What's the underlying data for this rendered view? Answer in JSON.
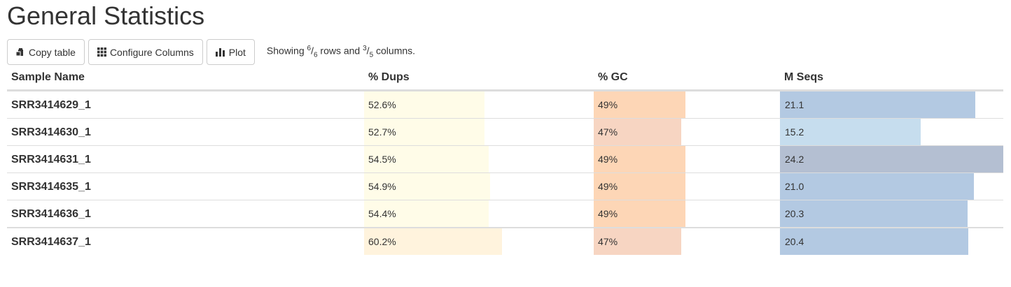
{
  "title": "General Statistics",
  "toolbar": {
    "copy_label": "Copy table",
    "configure_label": "Configure Columns",
    "plot_label": "Plot",
    "showing_prefix": "Showing ",
    "rows_shown": "6",
    "rows_total": "6",
    "rows_word": " rows and ",
    "cols_shown": "3",
    "cols_total": "5",
    "cols_word": " columns."
  },
  "columns": {
    "sample": "Sample Name",
    "dups": "% Dups",
    "gc": "% GC",
    "mseqs": "M Seqs"
  },
  "colors": {
    "dups_light": "#fffce8",
    "dups_dark": "#fff3dd",
    "gc_high": "#fdd6b6",
    "gc_low": "#f7d5c2",
    "mseqs_mid": "#b3c9e2",
    "mseqs_low": "#c6ddee",
    "mseqs_high": "#b4bfd2"
  },
  "rows": [
    {
      "sample": "SRR3414629_1",
      "dups": "52.6%",
      "dups_value": 52.6,
      "gc": "49%",
      "gc_value": 49,
      "mseqs": "21.1",
      "mseqs_value": 21.1
    },
    {
      "sample": "SRR3414630_1",
      "dups": "52.7%",
      "dups_value": 52.7,
      "gc": "47%",
      "gc_value": 47,
      "mseqs": "15.2",
      "mseqs_value": 15.2
    },
    {
      "sample": "SRR3414631_1",
      "dups": "54.5%",
      "dups_value": 54.5,
      "gc": "49%",
      "gc_value": 49,
      "mseqs": "24.2",
      "mseqs_value": 24.2
    },
    {
      "sample": "SRR3414635_1",
      "dups": "54.9%",
      "dups_value": 54.9,
      "gc": "49%",
      "gc_value": 49,
      "mseqs": "21.0",
      "mseqs_value": 21.0
    },
    {
      "sample": "SRR3414636_1",
      "dups": "54.4%",
      "dups_value": 54.4,
      "gc": "49%",
      "gc_value": 49,
      "mseqs": "20.3",
      "mseqs_value": 20.3
    },
    {
      "sample": "SRR3414637_1",
      "dups": "60.2%",
      "dups_value": 60.2,
      "gc": "47%",
      "gc_value": 47,
      "mseqs": "20.4",
      "mseqs_value": 20.4
    }
  ]
}
